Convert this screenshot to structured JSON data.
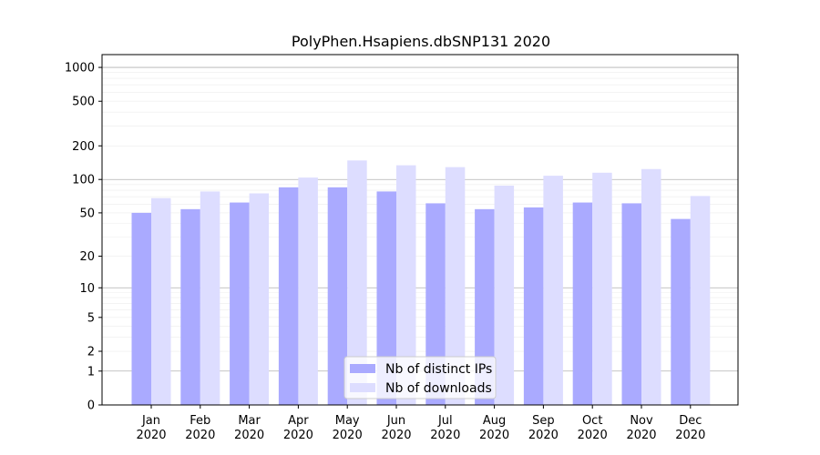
{
  "chart_data": {
    "type": "bar",
    "title": "PolyPhen.Hsapiens.dbSNP131 2020",
    "xlabel": "",
    "ylabel": "",
    "y_scale": "log1p",
    "ylim": [
      0,
      1300
    ],
    "y_ticks": [
      0,
      1,
      2,
      5,
      10,
      20,
      50,
      100,
      200,
      500,
      1000
    ],
    "y_tick_labels": [
      "0",
      "1",
      "2",
      "5",
      "10",
      "20",
      "50",
      "100",
      "200",
      "500",
      "1000"
    ],
    "categories": [
      "Jan\n2020",
      "Feb\n2020",
      "Mar\n2020",
      "Apr\n2020",
      "May\n2020",
      "Jun\n2020",
      "Jul\n2020",
      "Aug\n2020",
      "Sep\n2020",
      "Oct\n2020",
      "Nov\n2020",
      "Dec\n2020"
    ],
    "series": [
      {
        "name": "Nb of distinct IPs",
        "color": "#aaaaff",
        "values": [
          50,
          54,
          62,
          85,
          85,
          78,
          61,
          54,
          56,
          62,
          61,
          44
        ]
      },
      {
        "name": "Nb of downloads",
        "color": "#ddddff",
        "values": [
          68,
          78,
          75,
          104,
          148,
          134,
          129,
          88,
          108,
          115,
          124,
          71
        ]
      }
    ],
    "grid": true,
    "legend_position": "bottom-center"
  }
}
